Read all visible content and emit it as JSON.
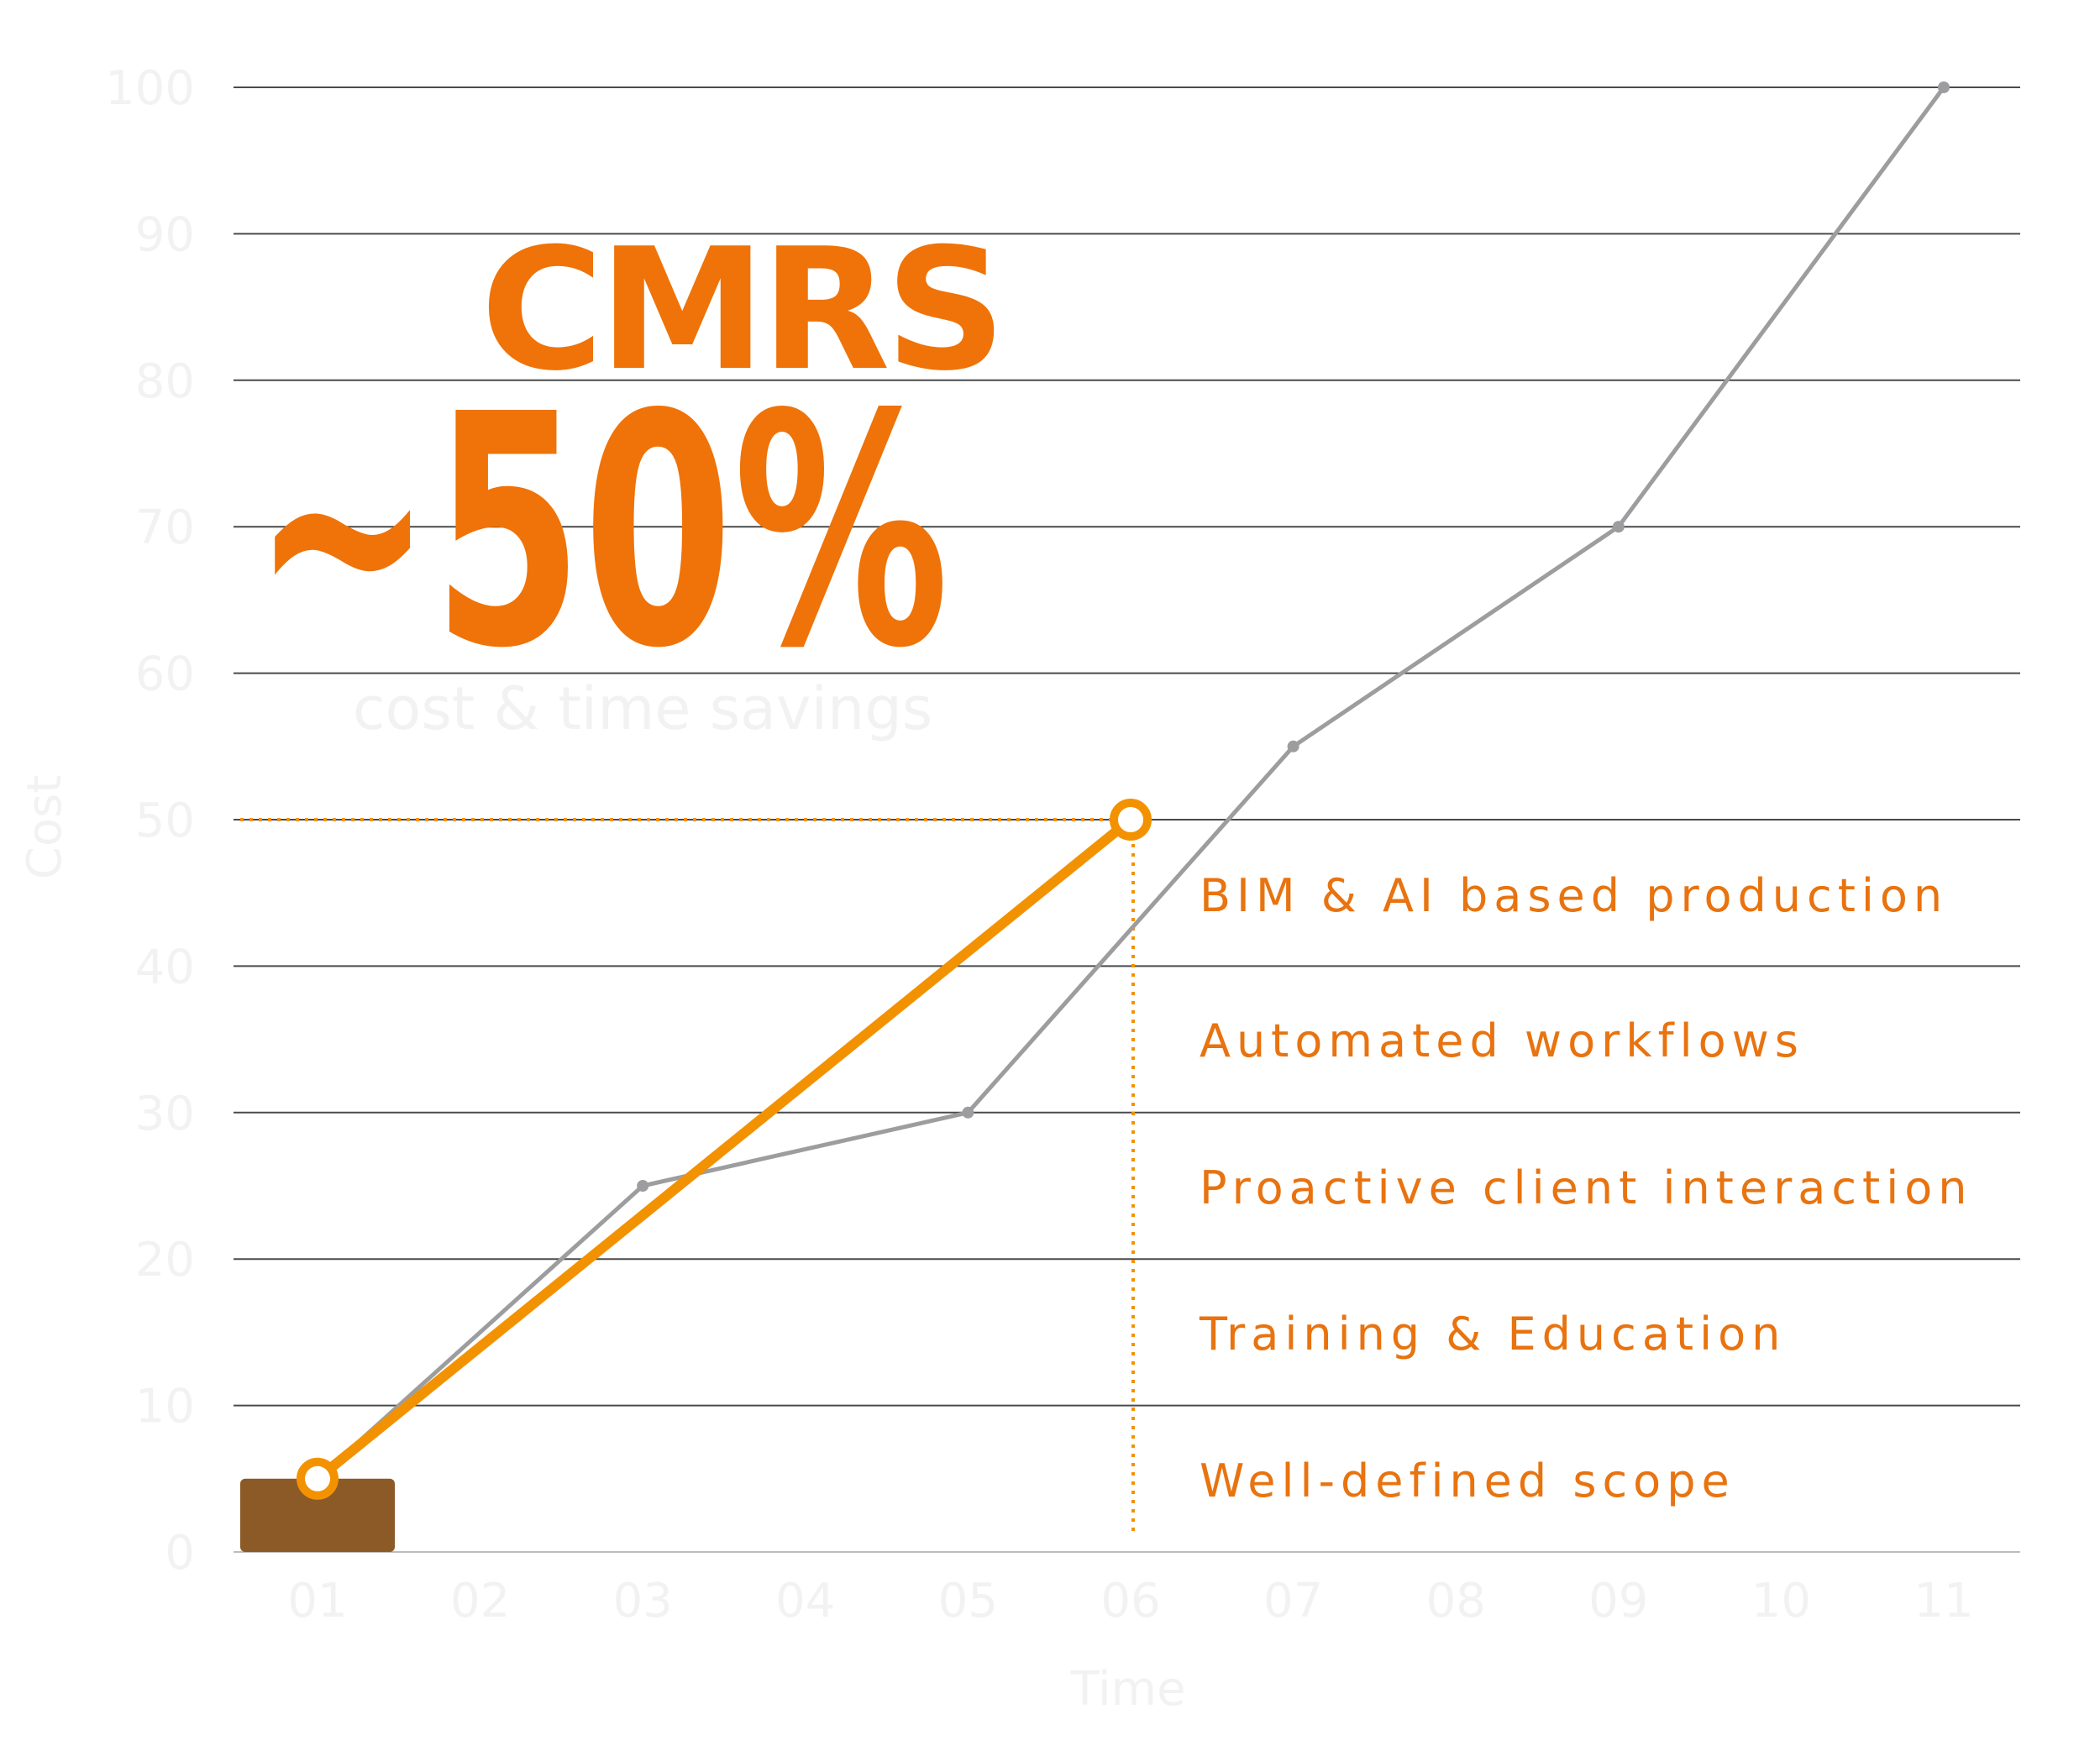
{
  "logo": {
    "text": "CMRS"
  },
  "headline": {
    "value": "~50%",
    "tagline": "cost & time savings"
  },
  "features": [
    "BIM & AI based production",
    "Automated workflows",
    "Proactive client interaction",
    "Training & Education",
    "Well-defined scope"
  ],
  "colors": {
    "accent": "#f39200",
    "brand": "#ef7308",
    "grey_line": "#9d9d9f",
    "grid": "#4a4a4a",
    "brown_bar": "#8b5a26",
    "axis_text": "#f2f2f2"
  },
  "chart_data": {
    "type": "line",
    "xlabel": "Time",
    "ylabel": "Cost",
    "categories": [
      "01",
      "02",
      "03",
      "04",
      "05",
      "06",
      "07",
      "08",
      "09",
      "10",
      "11"
    ],
    "ylim": [
      0,
      100
    ],
    "yticks": [
      0,
      10,
      20,
      30,
      40,
      50,
      60,
      70,
      80,
      90,
      100
    ],
    "grid": true,
    "series": [
      {
        "color": "#9d9d9f",
        "points": [
          [
            "01",
            5
          ],
          [
            "03",
            25
          ],
          [
            "05",
            30
          ],
          [
            "07",
            55
          ],
          [
            "09",
            70
          ],
          [
            "11",
            100
          ]
        ]
      },
      {
        "color": "#f39200",
        "points": [
          [
            "01",
            5
          ],
          [
            "06",
            50
          ]
        ]
      }
    ],
    "annotations": {
      "bar": {
        "category": "01",
        "value": 5,
        "color": "#8b5a26"
      },
      "reference": {
        "category": "06",
        "value": 50
      }
    }
  }
}
